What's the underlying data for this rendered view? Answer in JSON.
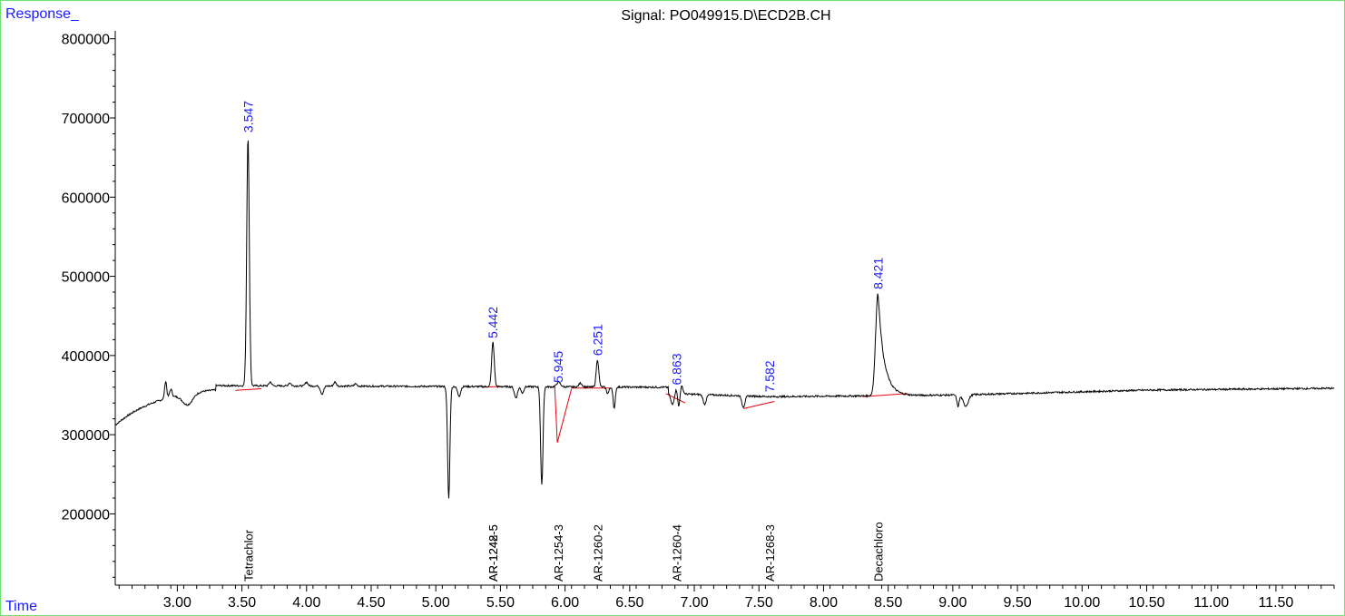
{
  "chart_data": {
    "type": "line",
    "title": "Signal: PO049915.D\\ECD2B.CH",
    "ylabel": "Response_",
    "xlabel": "Time",
    "xlim": [
      2.52,
      11.95
    ],
    "ylim": [
      110000,
      810000
    ],
    "xticks": [
      3.0,
      3.5,
      4.0,
      4.5,
      5.0,
      5.5,
      6.0,
      6.5,
      7.0,
      7.5,
      8.0,
      8.5,
      9.0,
      9.5,
      10.0,
      10.5,
      11.0,
      11.5
    ],
    "xtick_labels": [
      "3.00",
      "3.50",
      "4.00",
      "4.50",
      "5.00",
      "5.50",
      "6.00",
      "6.50",
      "7.00",
      "7.50",
      "8.00",
      "8.50",
      "9.00",
      "9.50",
      "10.00",
      "10.50",
      "11.00",
      "11.50"
    ],
    "yticks": [
      200000,
      300000,
      400000,
      500000,
      600000,
      700000,
      800000
    ],
    "ytick_labels": [
      "200000",
      "300000",
      "400000",
      "500000",
      "600000",
      "700000",
      "800000"
    ],
    "peaks": [
      {
        "rt": 3.547,
        "label": "3.547",
        "height": 677000
      },
      {
        "rt": 5.442,
        "label": "5.442",
        "height": 417000
      },
      {
        "rt": 5.945,
        "label": "5.945",
        "height": 361000
      },
      {
        "rt": 6.251,
        "label": "6.251",
        "height": 395000
      },
      {
        "rt": 6.863,
        "label": "6.863",
        "height": 358000
      },
      {
        "rt": 7.582,
        "label": "7.582",
        "height": 349000
      },
      {
        "rt": 8.421,
        "label": "8.421",
        "height": 479000
      }
    ],
    "compounds": [
      {
        "rt": 3.547,
        "name": "Tetrachlor"
      },
      {
        "rt": 5.442,
        "name": "AR-1248-5"
      },
      {
        "rt": 5.442,
        "name": "AR-1242-5"
      },
      {
        "rt": 5.945,
        "name": "AR-1254-3"
      },
      {
        "rt": 6.251,
        "name": "AR-1260-2"
      },
      {
        "rt": 6.863,
        "name": "AR-1260-4"
      },
      {
        "rt": 7.582,
        "name": "AR-1268-3"
      },
      {
        "rt": 8.421,
        "name": "Decachloro"
      }
    ],
    "dips": [
      {
        "rt": 5.1,
        "min": 219000
      },
      {
        "rt": 5.82,
        "min": 236000
      },
      {
        "rt": 9.04,
        "min": 336000
      }
    ],
    "baselines": [
      {
        "x": [
          3.45,
          3.65
        ],
        "y": [
          356000,
          358000
        ]
      },
      {
        "x": [
          5.37,
          5.52
        ],
        "y": [
          360000,
          361000
        ]
      },
      {
        "x": [
          5.92,
          5.94,
          6.05
        ],
        "y": [
          361000,
          290000,
          358000
        ]
      },
      {
        "x": [
          6.05,
          6.35
        ],
        "y": [
          359000,
          359000
        ]
      },
      {
        "x": [
          6.78,
          6.93
        ],
        "y": [
          352000,
          340000
        ]
      },
      {
        "x": [
          7.38,
          7.62
        ],
        "y": [
          333000,
          342000
        ]
      },
      {
        "x": [
          8.3,
          8.65
        ],
        "y": [
          348000,
          352000
        ]
      }
    ],
    "trace_color": "#000000",
    "baseline_color": "#e8000b",
    "label_color": "#1a1aff",
    "frame_color": "#6fe36f",
    "grid": false
  }
}
